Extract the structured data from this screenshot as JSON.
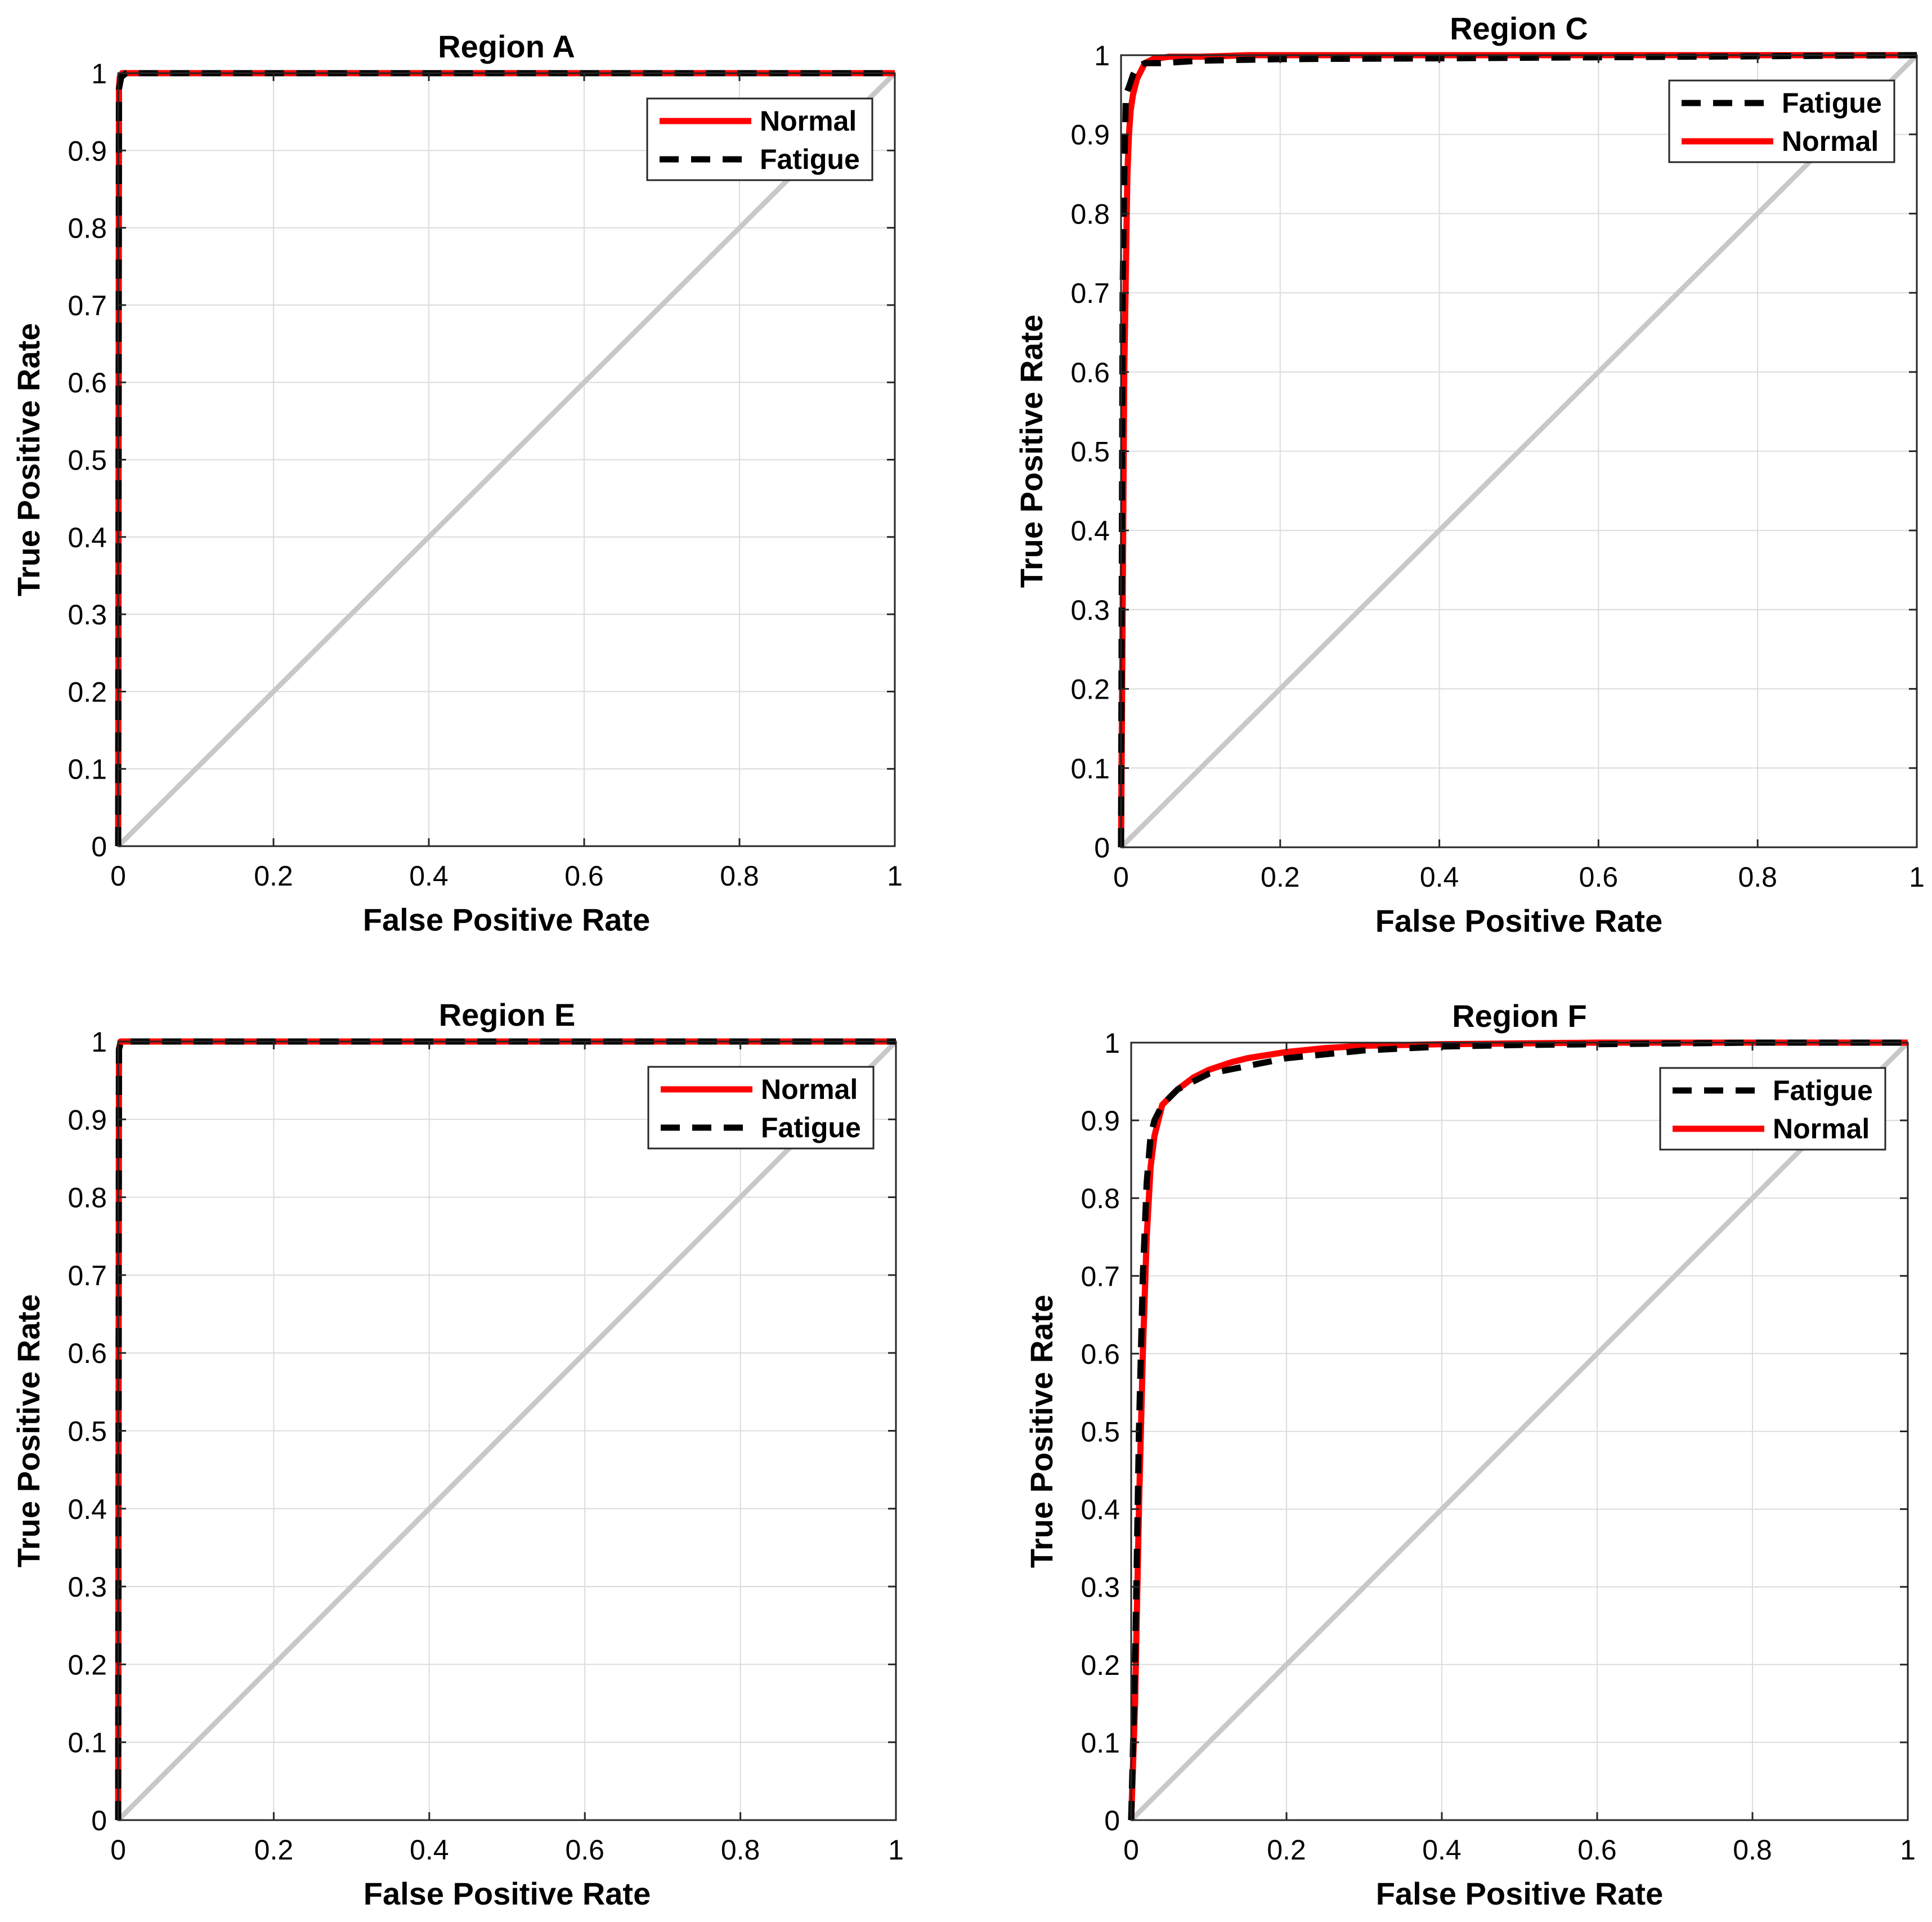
{
  "chart_data": [
    {
      "type": "line",
      "title": "Region A",
      "xlabel": "False Positive Rate",
      "ylabel": "True Positive Rate",
      "xlim": [
        0,
        1
      ],
      "ylim": [
        0,
        1
      ],
      "xticks": [
        "0",
        "0.2",
        "0.4",
        "0.6",
        "0.8",
        "1"
      ],
      "yticks": [
        "0",
        "0.1",
        "0.2",
        "0.3",
        "0.4",
        "0.5",
        "0.6",
        "0.7",
        "0.8",
        "0.9",
        "1"
      ],
      "grid": true,
      "legend_position": "top-right",
      "legend": [
        "Normal",
        "Fatigue"
      ],
      "diagonal": true,
      "series": [
        {
          "name": "Normal",
          "color": "#ff0000",
          "style": "solid",
          "x": [
            0,
            0.001,
            0.002,
            0.005,
            1
          ],
          "y": [
            0,
            0.98,
            0.995,
            1,
            1
          ]
        },
        {
          "name": "Fatigue",
          "color": "#000000",
          "style": "dashed",
          "x": [
            0,
            0.001,
            0.004,
            0.01,
            1
          ],
          "y": [
            0,
            0.98,
            0.995,
            1,
            1
          ]
        }
      ]
    },
    {
      "type": "line",
      "title": "Region C",
      "xlabel": "False Positive Rate",
      "ylabel": "True Positive Rate",
      "xlim": [
        0,
        1
      ],
      "ylim": [
        0,
        1
      ],
      "xticks": [
        "0",
        "0.2",
        "0.4",
        "0.6",
        "0.8",
        "1"
      ],
      "yticks": [
        "0",
        "0.1",
        "0.2",
        "0.3",
        "0.4",
        "0.5",
        "0.6",
        "0.7",
        "0.8",
        "0.9",
        "1"
      ],
      "grid": true,
      "legend_position": "top-right",
      "legend": [
        "Fatigue",
        "Normal"
      ],
      "diagonal": true,
      "series": [
        {
          "name": "Fatigue",
          "color": "#000000",
          "style": "dashed",
          "x": [
            0,
            0.002,
            0.004,
            0.006,
            0.01,
            0.015,
            0.02,
            0.03,
            0.05,
            0.1,
            0.2,
            0.4,
            0.7,
            1
          ],
          "y": [
            0,
            0.7,
            0.85,
            0.95,
            0.96,
            0.975,
            0.985,
            0.99,
            0.99,
            0.993,
            0.995,
            0.996,
            0.998,
            1
          ]
        },
        {
          "name": "Normal",
          "color": "#ff0000",
          "style": "solid",
          "x": [
            0,
            0.004,
            0.008,
            0.01,
            0.012,
            0.015,
            0.02,
            0.025,
            0.03,
            0.04,
            0.06,
            0.1,
            0.16,
            0.3,
            1
          ],
          "y": [
            0,
            0.6,
            0.85,
            0.9,
            0.93,
            0.95,
            0.97,
            0.98,
            0.99,
            0.995,
            0.998,
            0.998,
            1,
            1,
            1
          ]
        }
      ]
    },
    {
      "type": "line",
      "title": "Region E",
      "xlabel": "False Positive Rate",
      "ylabel": "True Positive Rate",
      "xlim": [
        0,
        1
      ],
      "ylim": [
        0,
        1
      ],
      "xticks": [
        "0",
        "0.2",
        "0.4",
        "0.6",
        "0.8",
        "1"
      ],
      "yticks": [
        "0",
        "0.1",
        "0.2",
        "0.3",
        "0.4",
        "0.5",
        "0.6",
        "0.7",
        "0.8",
        "0.9",
        "1"
      ],
      "grid": true,
      "legend_position": "top-right",
      "legend": [
        "Normal",
        "Fatigue"
      ],
      "diagonal": true,
      "series": [
        {
          "name": "Normal",
          "color": "#ff0000",
          "style": "solid",
          "x": [
            0,
            0.001,
            0.003,
            1
          ],
          "y": [
            0,
            0.99,
            1,
            1
          ]
        },
        {
          "name": "Fatigue",
          "color": "#000000",
          "style": "dashed",
          "x": [
            0,
            0.001,
            0.004,
            1
          ],
          "y": [
            0,
            0.99,
            1,
            1
          ]
        }
      ]
    },
    {
      "type": "line",
      "title": "Region F",
      "xlabel": "False Positive Rate",
      "ylabel": "True Positive Rate",
      "xlim": [
        0,
        1
      ],
      "ylim": [
        0,
        1
      ],
      "xticks": [
        "0",
        "0.2",
        "0.4",
        "0.6",
        "0.8",
        "1"
      ],
      "yticks": [
        "0",
        "0.1",
        "0.2",
        "0.3",
        "0.4",
        "0.5",
        "0.6",
        "0.7",
        "0.8",
        "0.9",
        "1"
      ],
      "grid": true,
      "legend_position": "top-right",
      "legend": [
        "Fatigue",
        "Normal"
      ],
      "diagonal": true,
      "series": [
        {
          "name": "Fatigue",
          "color": "#000000",
          "style": "dashed",
          "x": [
            0,
            0.005,
            0.01,
            0.015,
            0.02,
            0.025,
            0.03,
            0.04,
            0.06,
            0.08,
            0.1,
            0.15,
            0.2,
            0.25,
            0.3,
            0.4,
            0.5,
            0.6,
            0.7,
            0.8,
            1
          ],
          "y": [
            0,
            0.2,
            0.5,
            0.7,
            0.82,
            0.88,
            0.9,
            0.92,
            0.94,
            0.95,
            0.96,
            0.97,
            0.98,
            0.985,
            0.99,
            0.995,
            0.997,
            0.998,
            0.999,
            1,
            1
          ]
        },
        {
          "name": "Normal",
          "color": "#ff0000",
          "style": "solid",
          "x": [
            0,
            0.005,
            0.01,
            0.015,
            0.02,
            0.025,
            0.03,
            0.04,
            0.06,
            0.08,
            0.1,
            0.13,
            0.15,
            0.2,
            0.25,
            0.3,
            0.4,
            0.5,
            0.6,
            1
          ],
          "y": [
            0,
            0.15,
            0.4,
            0.6,
            0.75,
            0.84,
            0.88,
            0.92,
            0.94,
            0.955,
            0.965,
            0.975,
            0.98,
            0.988,
            0.993,
            0.996,
            0.998,
            0.999,
            1,
            1
          ]
        }
      ]
    }
  ]
}
